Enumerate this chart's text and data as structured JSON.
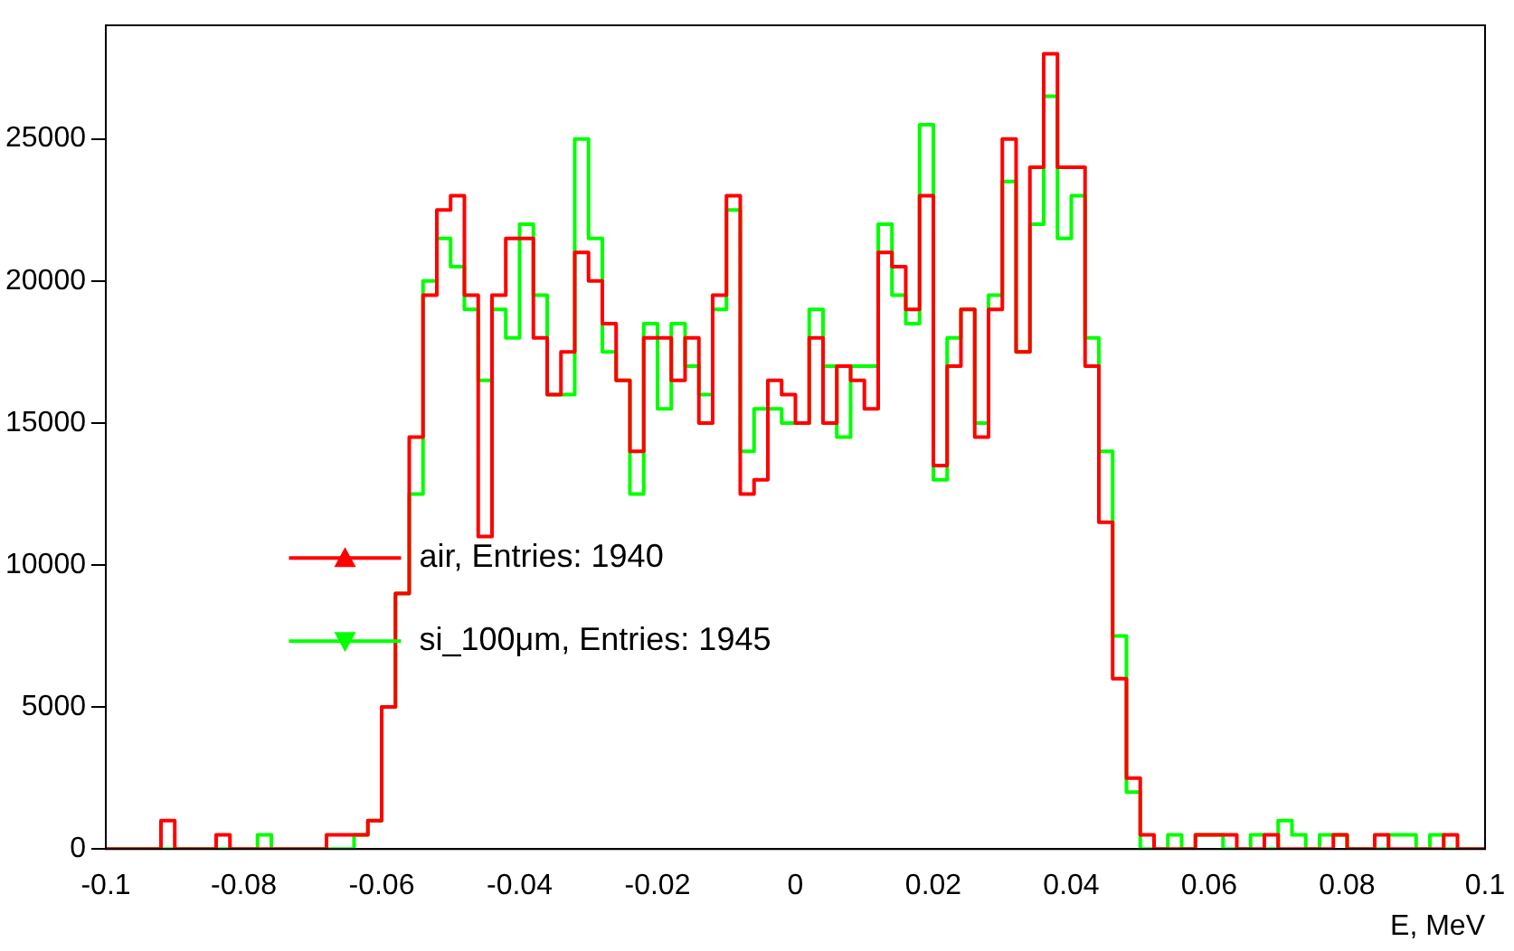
{
  "chart_data": {
    "type": "histogram",
    "xlabel": "E, MeV",
    "bins": [
      -0.1,
      -0.098,
      -0.096,
      -0.094,
      -0.092,
      -0.09,
      -0.088,
      -0.086,
      -0.084,
      -0.082,
      -0.08,
      -0.078,
      -0.076,
      -0.074,
      -0.072,
      -0.07,
      -0.068,
      -0.066,
      -0.064,
      -0.062,
      -0.06,
      -0.058,
      -0.056,
      -0.054,
      -0.052,
      -0.05,
      -0.048,
      -0.046,
      -0.044,
      -0.042,
      -0.04,
      -0.038,
      -0.036,
      -0.034,
      -0.032,
      -0.03,
      -0.028,
      -0.026,
      -0.024,
      -0.022,
      -0.02,
      -0.018,
      -0.016,
      -0.014,
      -0.012,
      -0.01,
      -0.008,
      -0.006,
      -0.004,
      -0.002,
      0,
      0.002,
      0.004,
      0.006,
      0.008,
      0.01,
      0.012,
      0.014,
      0.016,
      0.018,
      0.02,
      0.022,
      0.024,
      0.026,
      0.028,
      0.03,
      0.032,
      0.034,
      0.036,
      0.038,
      0.04,
      0.042,
      0.044,
      0.046,
      0.048,
      0.05,
      0.052,
      0.054,
      0.056,
      0.058,
      0.06,
      0.062,
      0.064,
      0.066,
      0.068,
      0.07,
      0.072,
      0.074,
      0.076,
      0.078,
      0.08,
      0.082,
      0.084,
      0.086,
      0.088,
      0.09,
      0.092,
      0.094,
      0.096,
      0.098,
      0.1
    ],
    "series": [
      {
        "name": "air, Entries: 1940",
        "color": "#ff0000",
        "values": [
          0,
          0,
          0,
          0,
          1000,
          0,
          0,
          0,
          500,
          0,
          0,
          0,
          0,
          0,
          0,
          0,
          500,
          500,
          500,
          1000,
          5000,
          9000,
          14500,
          19500,
          22500,
          23000,
          19500,
          11000,
          19500,
          21500,
          21500,
          18000,
          16000,
          17500,
          21000,
          20000,
          18500,
          16500,
          14000,
          18000,
          18000,
          16500,
          18000,
          15000,
          19500,
          23000,
          12500,
          13000,
          16500,
          16000,
          15000,
          18000,
          15000,
          17000,
          16500,
          15500,
          21000,
          20500,
          19000,
          23000,
          13500,
          17000,
          19000,
          14500,
          19000,
          25000,
          17500,
          24000,
          28000,
          24000,
          24000,
          17000,
          11500,
          6000,
          2500,
          500,
          0,
          0,
          0,
          500,
          500,
          500,
          0,
          0,
          500,
          0,
          0,
          0,
          0,
          500,
          0,
          0,
          500,
          0,
          0,
          0,
          0,
          500,
          0,
          0
        ]
      },
      {
        "name": "si_100μm, Entries: 1945",
        "color": "#00ff00",
        "values": [
          0,
          0,
          0,
          0,
          0,
          0,
          0,
          0,
          0,
          0,
          0,
          500,
          0,
          0,
          0,
          0,
          0,
          0,
          500,
          1000,
          5000,
          9000,
          12500,
          20000,
          21500,
          20500,
          19000,
          16500,
          19000,
          18000,
          22000,
          19500,
          16000,
          16000,
          25000,
          21500,
          17500,
          16500,
          12500,
          18500,
          15500,
          18500,
          17000,
          16000,
          19000,
          22500,
          14000,
          15500,
          15500,
          15000,
          15000,
          19000,
          17000,
          14500,
          17000,
          17000,
          22000,
          19500,
          18500,
          25500,
          13000,
          18000,
          19000,
          15000,
          19500,
          23500,
          17500,
          22000,
          26500,
          21500,
          23000,
          18000,
          14000,
          7500,
          2000,
          0,
          0,
          500,
          0,
          500,
          500,
          0,
          0,
          500,
          0,
          1000,
          500,
          0,
          500,
          500,
          0,
          0,
          0,
          500,
          500,
          0,
          500,
          0,
          0,
          0
        ]
      }
    ],
    "xlim": [
      -0.1,
      0.1
    ],
    "xticks": [
      -0.1,
      -0.08,
      -0.06,
      -0.04,
      -0.02,
      0,
      0.02,
      0.04,
      0.06,
      0.08,
      0.1
    ],
    "ylim": [
      0,
      29000
    ],
    "yticks": [
      0,
      5000,
      10000,
      15000,
      20000,
      25000
    ],
    "legend": "bottom"
  }
}
